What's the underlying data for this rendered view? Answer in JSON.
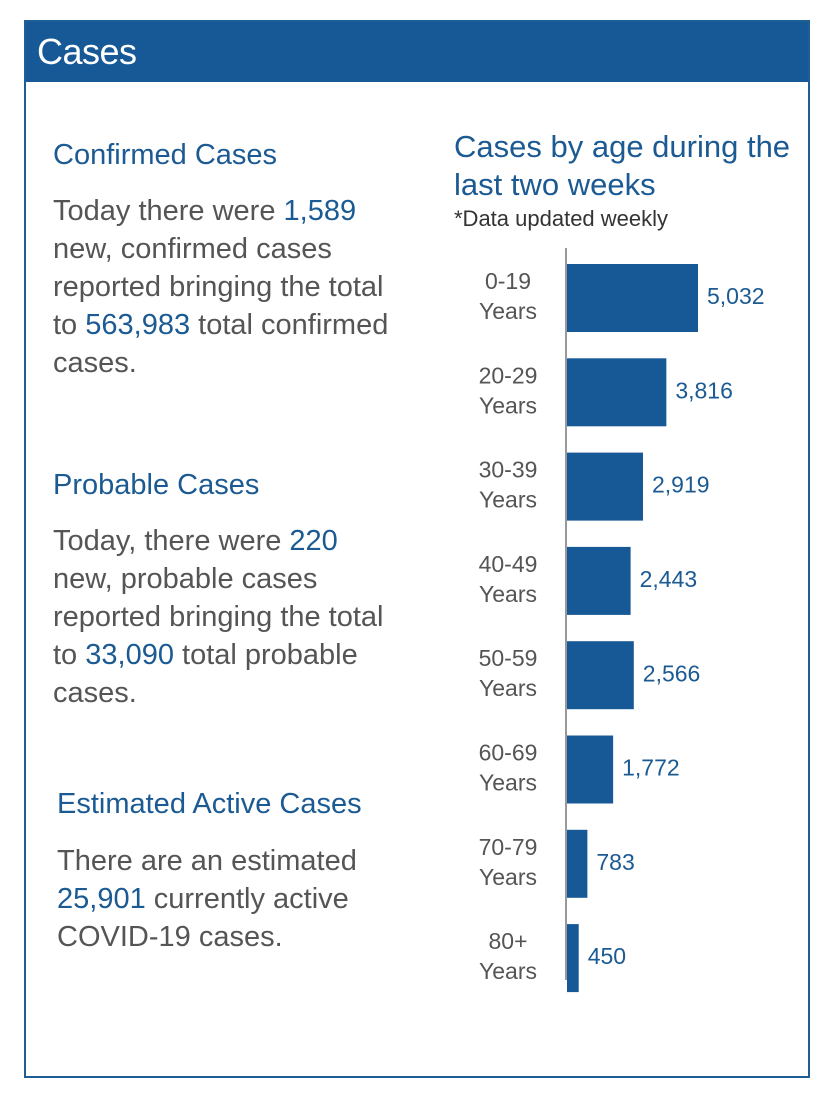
{
  "header": {
    "title": "Cases"
  },
  "confirmed": {
    "title": "Confirmed Cases",
    "text_1": "Today there were ",
    "new_count": "1,589",
    "text_2": " new, confirmed cases reported bringing the total to ",
    "total_count": "563,983",
    "text_3": " total confirmed cases."
  },
  "probable": {
    "title": "Probable Cases",
    "text_1": "Today, there were ",
    "new_count": "220",
    "text_2": " new, probable cases reported bringing the total to ",
    "total_count": "33,090",
    "text_3": " total probable cases."
  },
  "active": {
    "title": "Estimated Active Cases",
    "text_1": "There are an estimated ",
    "count": "25,901",
    "text_2": " currently active COVID-19 cases."
  },
  "chart_data": {
    "type": "bar",
    "orientation": "horizontal",
    "title": "Cases by age during the last two weeks",
    "subtitle": "*Data updated weekly",
    "categories": [
      [
        "0-19",
        "Years"
      ],
      [
        "20-29",
        "Years"
      ],
      [
        "30-39",
        "Years"
      ],
      [
        "40-49",
        "Years"
      ],
      [
        "50-59",
        "Years"
      ],
      [
        "60-69",
        "Years"
      ],
      [
        "70-79",
        "Years"
      ],
      [
        "80+",
        "Years"
      ]
    ],
    "values": [
      5032,
      3816,
      2919,
      2443,
      2566,
      1772,
      783,
      450
    ],
    "value_labels": [
      "5,032",
      "3,816",
      "2,919",
      "2,443",
      "2,566",
      "1,772",
      "783",
      "450"
    ],
    "xlim": [
      0,
      5032
    ],
    "bar_color": "#175896"
  }
}
